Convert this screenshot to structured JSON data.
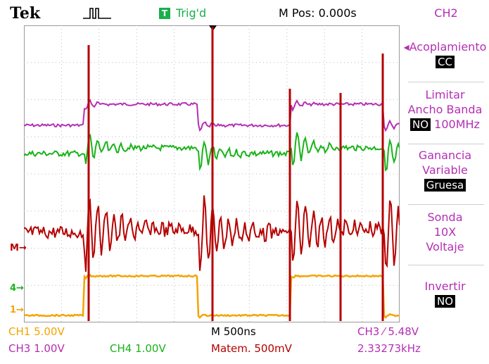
{
  "header": {
    "brand": "Tek",
    "trigger_badge": "T",
    "trigger_status": "Trig'd",
    "position": "M Pos: 0.000s",
    "channel": "CH2"
  },
  "menu": {
    "coupling_label": "Acoplamiento",
    "coupling_value": "CC",
    "bw_line1": "Limitar",
    "bw_line2": "Ancho Banda",
    "bw_state": "NO",
    "bw_freq": "100MHz",
    "gain_line1": "Ganancia",
    "gain_line2": "Variable",
    "gain_value": "Gruesa",
    "probe_line1": "Sonda",
    "probe_line2": "10X",
    "probe_line3": "Voltaje",
    "invert_label": "Invertir",
    "invert_value": "NO"
  },
  "markers": {
    "math": "M",
    "ch4": "4",
    "ch1": "1"
  },
  "status": {
    "ch1_scale": "CH1  5.00V",
    "ch3_scale": "CH3  1.00V",
    "ch4_scale": "CH4  1.00V",
    "timebase": "M 500ns",
    "math_scale": "Matem. 500mV",
    "trigger_setting": "CH3 ⁄ 5.48V",
    "frequency": "2.33273kHz"
  },
  "colors": {
    "ch1": "#f5a300",
    "ch2": "#b42fb4",
    "ch3": "#b42fb4",
    "ch4": "#19b319",
    "math": "#b50000",
    "trigger": "#18b04a"
  }
}
